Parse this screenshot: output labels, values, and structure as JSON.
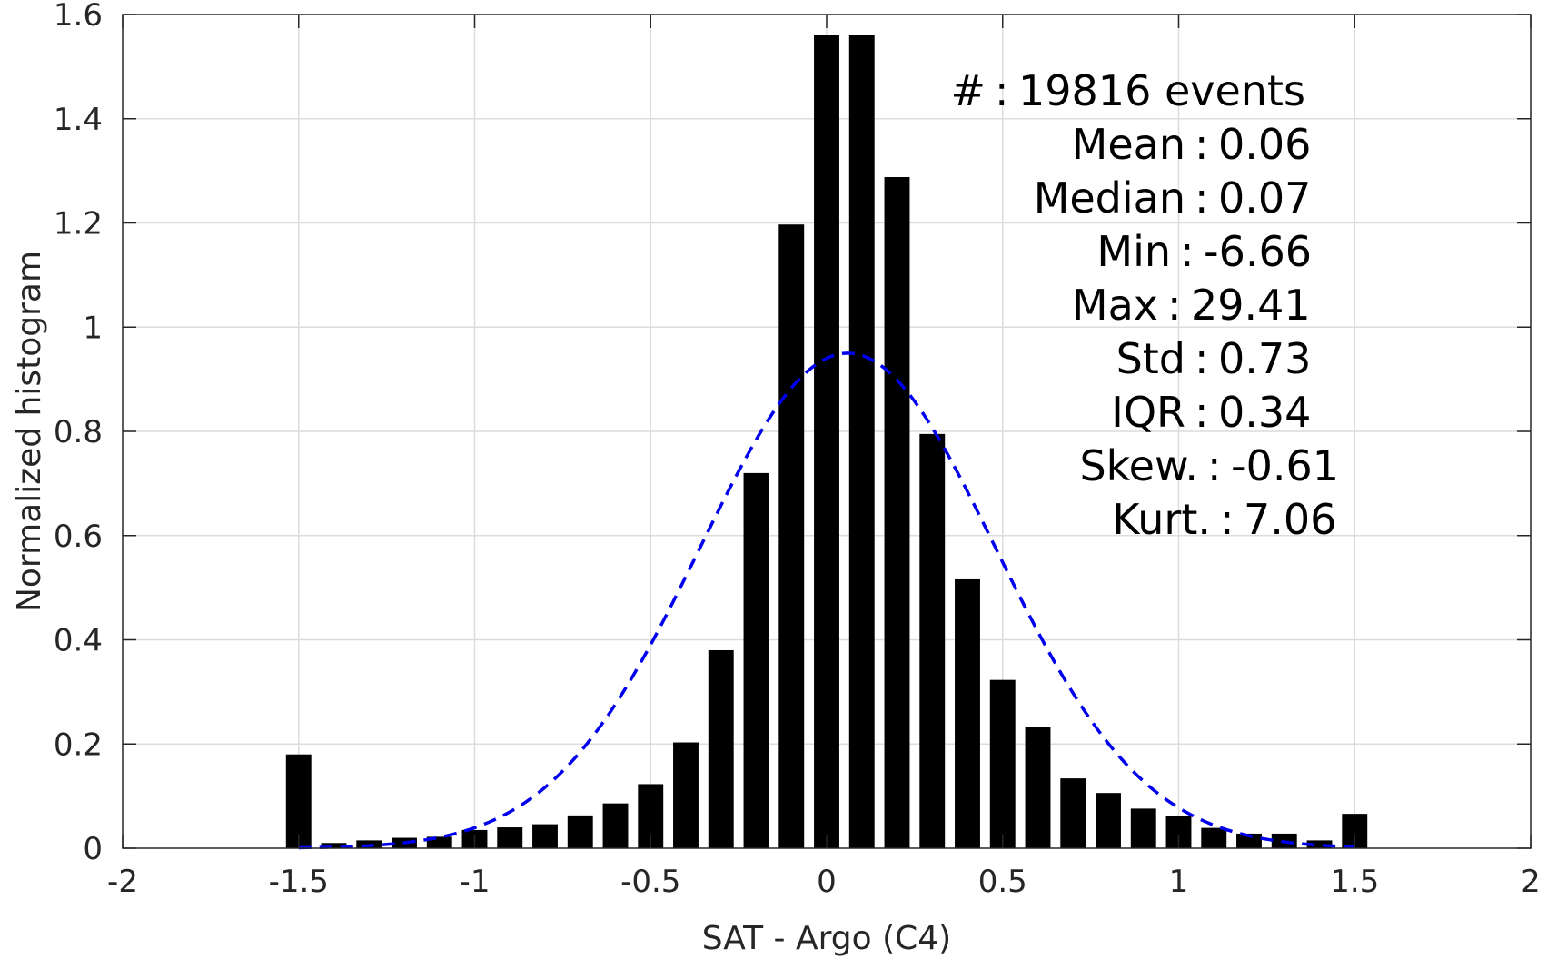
{
  "chart_data": {
    "type": "bar",
    "xlabel": "SAT - Argo (C4)",
    "ylabel": "Normalized histogram",
    "xlim": [
      -2,
      2
    ],
    "ylim": [
      0,
      1.6
    ],
    "xticks": [
      -2,
      -1.5,
      -1,
      -0.5,
      0,
      0.5,
      1,
      1.5,
      2
    ],
    "xtick_labels": [
      "-2",
      "-1.5",
      "-1",
      "-0.5",
      "0",
      "0.5",
      "1",
      "1.5",
      "2"
    ],
    "yticks": [
      0,
      0.2,
      0.4,
      0.6,
      0.8,
      1,
      1.2,
      1.4,
      1.6
    ],
    "ytick_labels": [
      "0",
      "0.2",
      "0.4",
      "0.6",
      "0.8",
      "1",
      "1.2",
      "1.4",
      "1.6"
    ],
    "grid": true,
    "bar_color": "#000000",
    "bin_width": 0.1,
    "bins": [
      -1.5,
      -1.4,
      -1.3,
      -1.2,
      -1.1,
      -1.0,
      -0.9,
      -0.8,
      -0.7,
      -0.6,
      -0.5,
      -0.4,
      -0.3,
      -0.2,
      -0.1,
      0.0,
      0.1,
      0.2,
      0.3,
      0.4,
      0.5,
      0.6,
      0.7,
      0.8,
      0.9,
      1.0,
      1.1,
      1.2,
      1.3,
      1.4,
      1.5
    ],
    "values": [
      0.18,
      0.01,
      0.015,
      0.02,
      0.022,
      0.035,
      0.04,
      0.046,
      0.063,
      0.086,
      0.123,
      0.203,
      0.38,
      0.72,
      1.197,
      1.56,
      1.56,
      1.288,
      0.795,
      0.516,
      0.323,
      0.232,
      0.134,
      0.106,
      0.076,
      0.062,
      0.039,
      0.028,
      0.028,
      0.015,
      0.066
    ],
    "fit_curve": {
      "style": "dashed",
      "color": "#0000ee",
      "mean": 0.06,
      "std": 0.42,
      "peak": 0.95,
      "x_range": [
        -1.5,
        1.5
      ]
    },
    "stats": [
      {
        "label": "#  ",
        "value": "19816 events"
      },
      {
        "label": "Mean",
        "value": "0.06"
      },
      {
        "label": "Median",
        "value": "0.07"
      },
      {
        "label": "Min",
        "value": "-6.66"
      },
      {
        "label": "Max",
        "value": "29.41"
      },
      {
        "label": "Std",
        "value": "0.73"
      },
      {
        "label": "IQR",
        "value": "0.34"
      },
      {
        "label": "Skew.",
        "value": "-0.61"
      },
      {
        "label": "Kurt.",
        "value": "7.06"
      }
    ]
  }
}
